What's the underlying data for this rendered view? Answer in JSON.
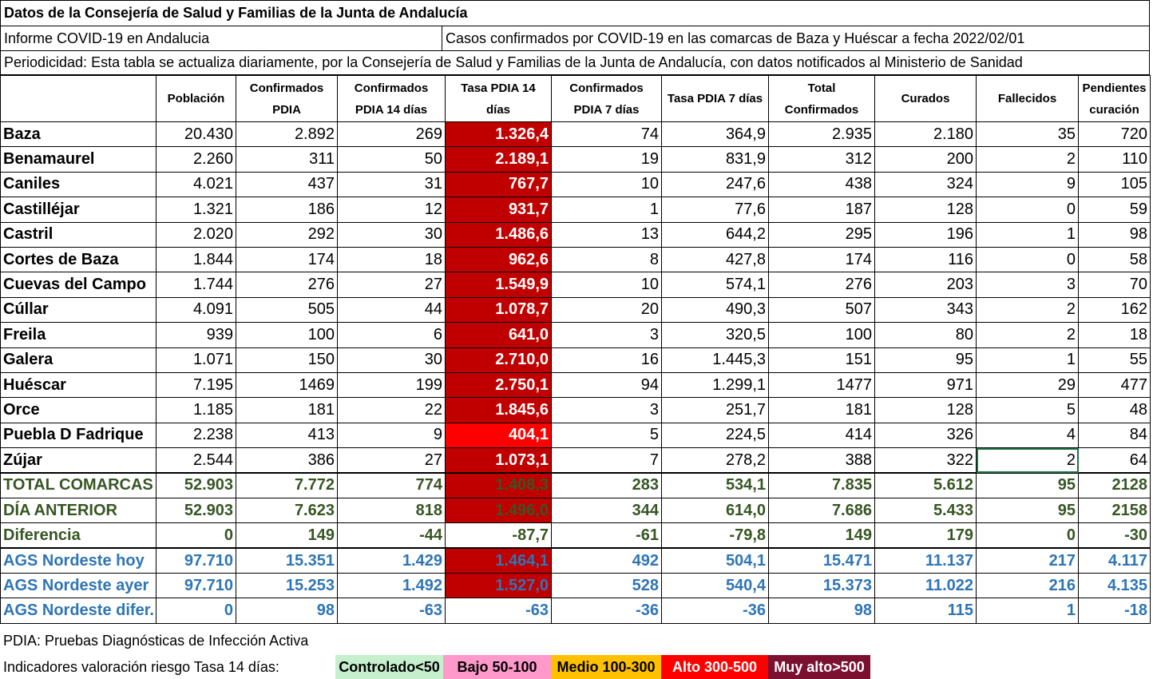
{
  "header": {
    "title": "Datos de la Consejería de Salud y Familias de la Junta de Andalucía",
    "report": "Informe COVID-19 en Andalucia",
    "subject": "Casos confirmados por COVID-19 en las comarcas de Baza y Huéscar a fecha 2022/02/01",
    "periodicity": "Periodicidad: Esta tabla se actualiza diariamente, por la Consejería de Salud y Familias de la Junta de Andalucía, con datos notificados al Ministerio de Sanidad"
  },
  "columns": [
    "",
    "Población",
    "Confirmados PDIA",
    "Confirmados PDIA 14 días",
    "Tasa PDIA 14 días",
    "Confirmados PDIA 7 días",
    "Tasa PDIA 7 días",
    "Total Confirmados",
    "Curados",
    "Fallecidos",
    "Pendientes curación"
  ],
  "rows": [
    [
      "Baza",
      "20.430",
      "2.892",
      "269",
      "1.326,4",
      "74",
      "364,9",
      "2.935",
      "2.180",
      "35",
      "720"
    ],
    [
      "Benamaurel",
      "2.260",
      "311",
      "50",
      "2.189,1",
      "19",
      "831,9",
      "312",
      "200",
      "2",
      "110"
    ],
    [
      "Caniles",
      "4.021",
      "437",
      "31",
      "767,7",
      "10",
      "247,6",
      "438",
      "324",
      "9",
      "105"
    ],
    [
      "Castilléjar",
      "1.321",
      "186",
      "12",
      "931,7",
      "1",
      "77,6",
      "187",
      "128",
      "0",
      "59"
    ],
    [
      "Castril",
      "2.020",
      "292",
      "30",
      "1.486,6",
      "13",
      "644,2",
      "295",
      "196",
      "1",
      "98"
    ],
    [
      "Cortes de Baza",
      "1.844",
      "174",
      "18",
      "962,6",
      "8",
      "427,8",
      "174",
      "116",
      "0",
      "58"
    ],
    [
      "Cuevas del Campo",
      "1.744",
      "276",
      "27",
      "1.549,9",
      "10",
      "574,1",
      "276",
      "203",
      "3",
      "70"
    ],
    [
      "Cúllar",
      "4.091",
      "505",
      "44",
      "1.078,7",
      "20",
      "490,3",
      "507",
      "343",
      "2",
      "162"
    ],
    [
      "Freila",
      "939",
      "100",
      "6",
      "641,0",
      "3",
      "320,5",
      "100",
      "80",
      "2",
      "18"
    ],
    [
      "Galera",
      "1.071",
      "150",
      "30",
      "2.710,0",
      "16",
      "1.445,3",
      "151",
      "95",
      "1",
      "55"
    ],
    [
      "Huéscar",
      "7.195",
      "1469",
      "199",
      "2.750,1",
      "94",
      "1.299,1",
      "1477",
      "971",
      "29",
      "477"
    ],
    [
      "Orce",
      "1.185",
      "181",
      "22",
      "1.845,6",
      "3",
      "251,7",
      "181",
      "128",
      "5",
      "48"
    ],
    [
      "Puebla D Fadrique",
      "2.238",
      "413",
      "9",
      "404,1",
      "5",
      "224,5",
      "414",
      "326",
      "4",
      "84"
    ],
    [
      "Zújar",
      "2.544",
      "386",
      "27",
      "1.073,1",
      "7",
      "278,2",
      "388",
      "322",
      "2",
      "64"
    ]
  ],
  "totals": [
    [
      "TOTAL COMARCAS",
      "52.903",
      "7.772",
      "774",
      "1.408,3",
      "283",
      "534,1",
      "7.835",
      "5.612",
      "95",
      "2128"
    ],
    [
      "DÍA ANTERIOR",
      "52.903",
      "7.623",
      "818",
      "1.496,0",
      "344",
      "614,0",
      "7.686",
      "5.433",
      "95",
      "2158"
    ],
    [
      "Diferencia",
      "0",
      "149",
      "-44",
      "-87,7",
      "-61",
      "-79,8",
      "149",
      "179",
      "0",
      "-30"
    ]
  ],
  "ags": [
    [
      "AGS Nordeste hoy",
      "97.710",
      "15.351",
      "1.429",
      "1.464,1",
      "492",
      "504,1",
      "15.471",
      "11.137",
      "217",
      "4.117"
    ],
    [
      "AGS Nordeste ayer",
      "97.710",
      "15.253",
      "1.492",
      "1.527,0",
      "528",
      "540,4",
      "15.373",
      "11.022",
      "216",
      "4.135"
    ],
    [
      "AGS Nordeste difer.",
      "0",
      "98",
      "-63",
      "-63",
      "-36",
      "-36",
      "98",
      "115",
      "1",
      "-18"
    ]
  ],
  "footer": {
    "pdia": "PDIA: Pruebas Diagnósticas de Infección Activa",
    "indicators_label": "Indicadores valoración riesgo Tasa 14 días:",
    "legend": [
      {
        "label": "Controlado<50",
        "color": "#c6efce",
        "text": "#000000"
      },
      {
        "label": "Bajo 50-100",
        "color": "#ff99cc",
        "text": "#000000"
      },
      {
        "label": "Medio 100-300",
        "color": "#ffc000",
        "text": "#000000"
      },
      {
        "label": "Alto 300-500",
        "color": "#ff0000",
        "text": "#ffffff"
      },
      {
        "label": "Muy alto>500",
        "color": "#7b1030",
        "text": "#ffffff"
      }
    ]
  },
  "colors": {
    "muy_alto": "#c00000",
    "alto": "#ff0000",
    "totals_text": "#375623",
    "ags_text": "#2e75b6"
  }
}
